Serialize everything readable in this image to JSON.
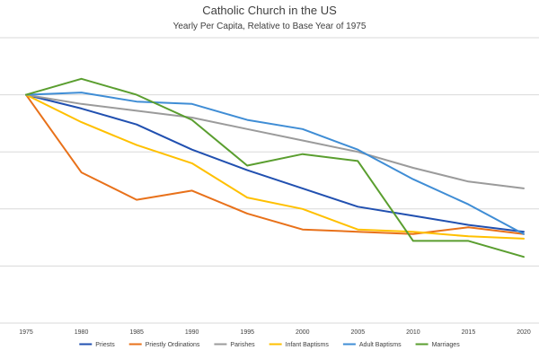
{
  "chart_data": {
    "type": "line",
    "title": "Catholic Church in the US",
    "subtitle": "Yearly Per Capita, Relative to Base Year of 1975",
    "x": [
      "1975",
      "1980",
      "1985",
      "1990",
      "1995",
      "2000",
      "2005",
      "2010",
      "2015",
      "2020"
    ],
    "ylim": [
      0,
      1.25
    ],
    "grid": true,
    "legend_position": "bottom",
    "series": [
      {
        "name": "Priests",
        "color": "#2150b0",
        "values": [
          1.0,
          0.94,
          0.87,
          0.76,
          0.67,
          0.59,
          0.51,
          0.47,
          0.43,
          0.4
        ]
      },
      {
        "name": "Priestly Ordinations",
        "color": "#e8711a",
        "values": [
          1.0,
          0.66,
          0.54,
          0.58,
          0.48,
          0.41,
          0.4,
          0.39,
          0.42,
          0.39
        ]
      },
      {
        "name": "Parishes",
        "color": "#9b9b9b",
        "values": [
          1.0,
          0.96,
          0.93,
          0.9,
          0.85,
          0.8,
          0.75,
          0.68,
          0.62,
          0.59
        ]
      },
      {
        "name": "Infant Baptisms",
        "color": "#ffc000",
        "values": [
          1.0,
          0.88,
          0.78,
          0.7,
          0.55,
          0.5,
          0.41,
          0.4,
          0.38,
          0.37
        ]
      },
      {
        "name": "Adult Baptisms",
        "color": "#3f8dd5",
        "values": [
          1.0,
          1.01,
          0.97,
          0.96,
          0.89,
          0.85,
          0.76,
          0.63,
          0.52,
          0.39
        ]
      },
      {
        "name": "Marriages",
        "color": "#5a9e2f",
        "values": [
          1.0,
          1.07,
          1.0,
          0.89,
          0.69,
          0.74,
          0.71,
          0.36,
          0.36,
          0.29
        ]
      }
    ]
  }
}
